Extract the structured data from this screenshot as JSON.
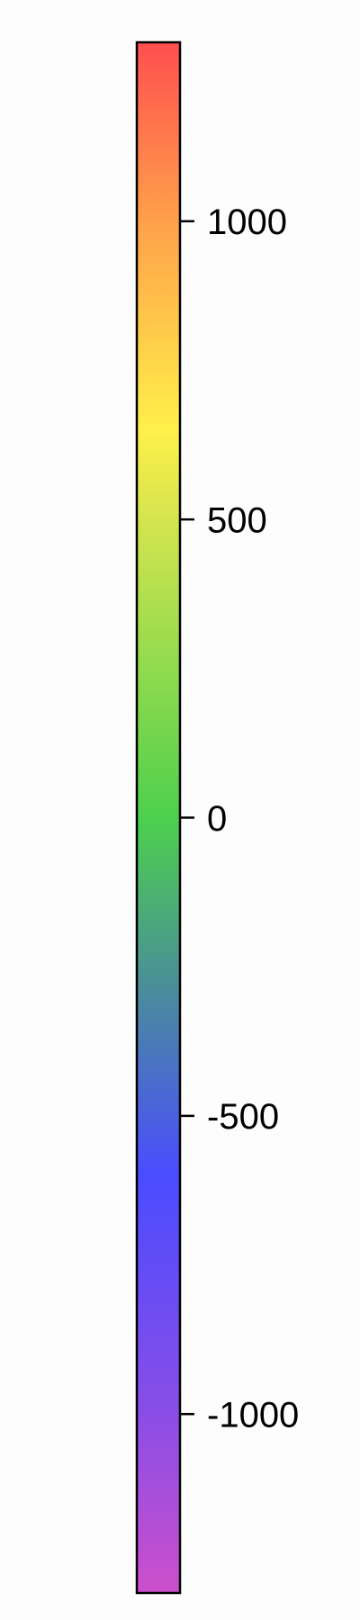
{
  "chart_data": {
    "type": "heatmap",
    "title": "",
    "xlabel": "",
    "ylabel": "",
    "colorbar": {
      "orientation": "vertical",
      "vmin": -1300,
      "vmax": 1300,
      "ticks": [
        {
          "value": 1000,
          "label": "1000"
        },
        {
          "value": 500,
          "label": "500"
        },
        {
          "value": 0,
          "label": "0"
        },
        {
          "value": -500,
          "label": "-500"
        },
        {
          "value": -1000,
          "label": "-1000"
        }
      ],
      "color_stops": [
        {
          "value": -1300,
          "color": "#cc4fcc"
        },
        {
          "value": -1000,
          "color": "#8a4de6"
        },
        {
          "value": -600,
          "color": "#4a4cff"
        },
        {
          "value": -300,
          "color": "#4a8a9e"
        },
        {
          "value": 0,
          "color": "#4dd04d"
        },
        {
          "value": 500,
          "color": "#d4e44e"
        },
        {
          "value": 650,
          "color": "#fff04a"
        },
        {
          "value": 1000,
          "color": "#ffa04a"
        },
        {
          "value": 1300,
          "color": "#ff4f4f"
        }
      ],
      "outline_color": "#000000",
      "background_color": "#fdfdfd"
    }
  }
}
